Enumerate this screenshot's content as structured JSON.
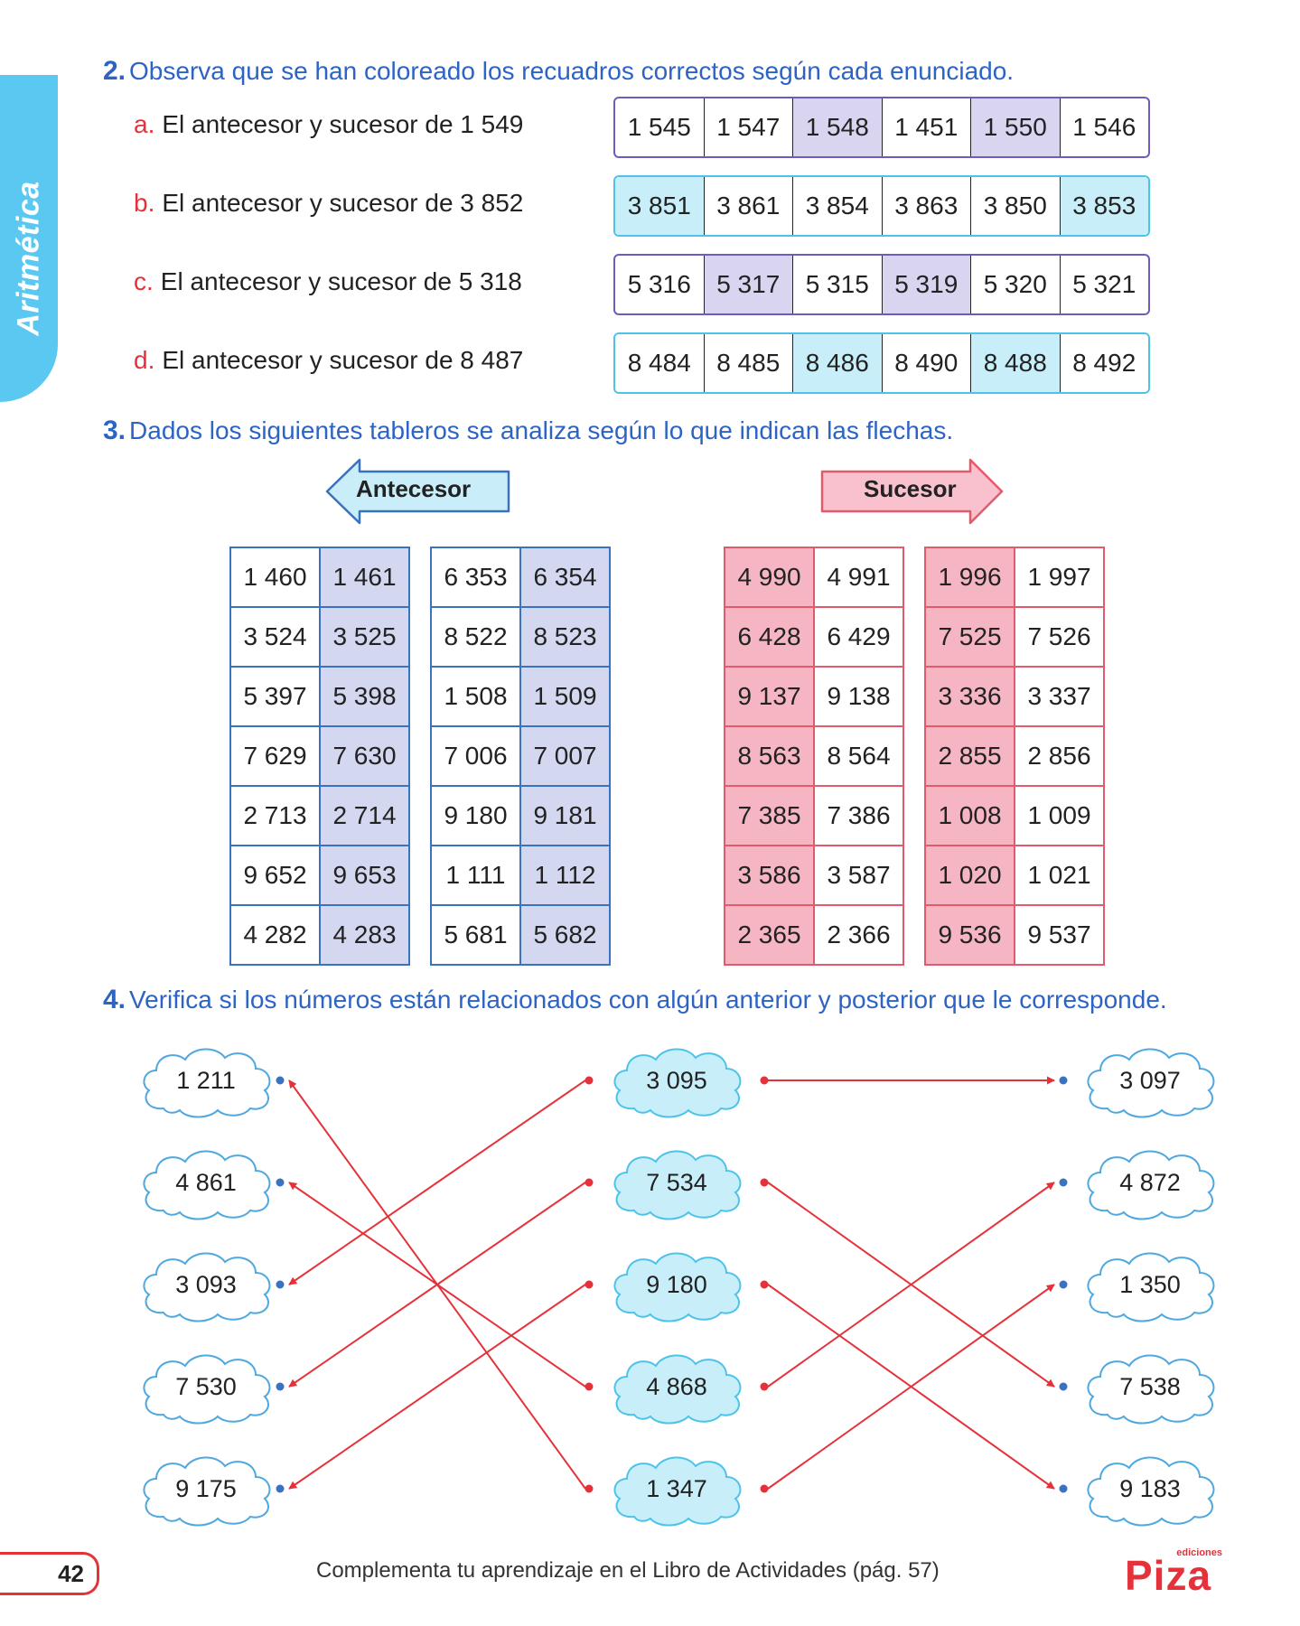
{
  "side_tab": {
    "label": "Aritmética"
  },
  "section2": {
    "number": "2.",
    "title": "Observa que se han coloreado los recuadros correctos según cada enunciado.",
    "rows": [
      {
        "letter": "a.",
        "text": "El antecesor y sucesor de 1 549",
        "options": [
          "1 545",
          "1 547",
          "1 548",
          "1 451",
          "1 550",
          "1 546"
        ],
        "highlighted": [
          2,
          4
        ],
        "color": "#d9d4f0"
      },
      {
        "letter": "b.",
        "text": "El antecesor y sucesor de 3 852",
        "options": [
          "3 851",
          "3 861",
          "3 854",
          "3 863",
          "3 850",
          "3 853"
        ],
        "highlighted": [
          0,
          5
        ],
        "color": "#c8eff9"
      },
      {
        "letter": "c.",
        "text": "El antecesor y sucesor de 5 318",
        "options": [
          "5 316",
          "5 317",
          "5 315",
          "5 319",
          "5 320",
          "5 321"
        ],
        "highlighted": [
          1,
          3
        ],
        "color": "#d9d4f0"
      },
      {
        "letter": "d.",
        "text": "El antecesor y sucesor de 8 487",
        "options": [
          "8 484",
          "8 485",
          "8 486",
          "8 490",
          "8 488",
          "8 492"
        ],
        "highlighted": [
          2,
          4
        ],
        "color": "#c8eff9"
      }
    ]
  },
  "section3": {
    "number": "3.",
    "title": "Dados los siguientes tableros se analiza según lo que indican las flechas.",
    "antecesor_label": "Antecesor",
    "sucesor_label": "Sucesor",
    "antecesor_boards": [
      [
        [
          "1 460",
          "1 461"
        ],
        [
          "3 524",
          "3 525"
        ],
        [
          "5 397",
          "5 398"
        ],
        [
          "7 629",
          "7 630"
        ],
        [
          "2 713",
          "2 714"
        ],
        [
          "9 652",
          "9 653"
        ],
        [
          "4 282",
          "4 283"
        ]
      ],
      [
        [
          "6 353",
          "6 354"
        ],
        [
          "8 522",
          "8 523"
        ],
        [
          "1 508",
          "1 509"
        ],
        [
          "7 006",
          "7 007"
        ],
        [
          "9 180",
          "9 181"
        ],
        [
          "1 111",
          "1 112"
        ],
        [
          "5 681",
          "5 682"
        ]
      ]
    ],
    "sucesor_boards": [
      [
        [
          "4 990",
          "4 991"
        ],
        [
          "6 428",
          "6 429"
        ],
        [
          "9 137",
          "9 138"
        ],
        [
          "8 563",
          "8 564"
        ],
        [
          "7 385",
          "7 386"
        ],
        [
          "3 586",
          "3 587"
        ],
        [
          "2 365",
          "2 366"
        ]
      ],
      [
        [
          "1 996",
          "1 997"
        ],
        [
          "7 525",
          "7 526"
        ],
        [
          "3 336",
          "3 337"
        ],
        [
          "2 855",
          "2 856"
        ],
        [
          "1 008",
          "1 009"
        ],
        [
          "1 020",
          "1 021"
        ],
        [
          "9 536",
          "9 537"
        ]
      ]
    ]
  },
  "section4": {
    "number": "4.",
    "title": "Verifica si los números están relacionados con algún anterior y posterior que le corresponde.",
    "left": [
      "1 211",
      "4 861",
      "3 093",
      "7 530",
      "9 175"
    ],
    "middle": [
      "3 095",
      "7 534",
      "9 180",
      "4 868",
      "1 347"
    ],
    "right": [
      "3 097",
      "4 872",
      "1 350",
      "7 538",
      "9 183"
    ],
    "links_to_left": [
      2,
      3,
      4,
      1,
      0
    ],
    "links_to_right": [
      0,
      3,
      4,
      1,
      2
    ]
  },
  "footer": {
    "page_number": "42",
    "text": "Complementa tu aprendizaje en el Libro de Actividades (pág. 57)",
    "logo_small": "ediciones",
    "logo_big": "Piza"
  }
}
